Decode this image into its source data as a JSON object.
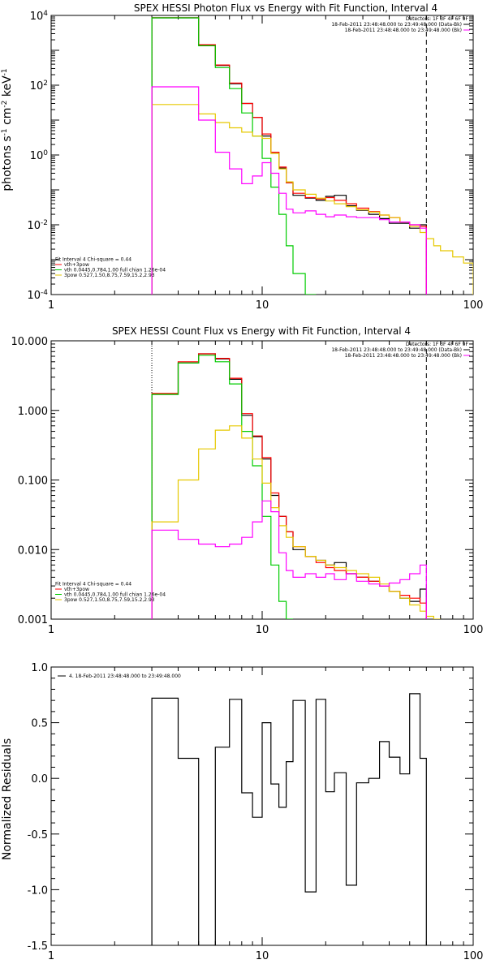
{
  "chart_data": [
    {
      "type": "line",
      "title": "SPEX HESSI Photon Flux vs Energy with Fit Function, Interval 4",
      "ylabel_main": "photons s",
      "ylabel_sup1": "-1",
      "ylabel_mid": " cm",
      "ylabel_sup2": "-2",
      "ylabel_end": " keV",
      "ylabel_sup3": "-1",
      "xlim": [
        1,
        100
      ],
      "ylim": [
        0.0001,
        10000
      ],
      "xscale": "log",
      "yscale": "log",
      "x_tick_labels": [
        {
          "v": 1,
          "t": "1"
        },
        {
          "v": 10,
          "t": "10"
        },
        {
          "v": 100,
          "t": "100"
        }
      ],
      "y_tick_labels": [
        {
          "v": 0.0001,
          "base": "10",
          "exp": "-4"
        },
        {
          "v": 0.01,
          "base": "10",
          "exp": "-2"
        },
        {
          "v": 1,
          "base": "10",
          "exp": "0"
        },
        {
          "v": 100,
          "base": "10",
          "exp": "2"
        },
        {
          "v": 10000,
          "base": "10",
          "exp": "4"
        }
      ],
      "legend_topright": [
        {
          "text": "Detectors: 1F 3F 4F 6F 9F",
          "color": ""
        },
        {
          "text": "18-Feb-2011 23:48:48.000 to 23:49:48.000 (Data-Bk)",
          "color": "#000000"
        },
        {
          "text": "18-Feb-2011 23:48:48.000 to 23:49:48.000 (Bk)",
          "color": "#ff00ff"
        }
      ],
      "legend_bottomleft": [
        {
          "text": "Fit Interval 4   Chi-square = 0.44",
          "color": ""
        },
        {
          "text": "vth+3pow",
          "color": "#ff0000"
        },
        {
          "text": "vth 0.0445,0.784,1.00  full chian 1.26e-04",
          "color": "#00cc00"
        },
        {
          "text": "3pow 0.527,1.50,8.75,7.59,15.2,2.93",
          "color": "#e6c800"
        }
      ],
      "vlines": [
        {
          "x": 3,
          "style": "dotted"
        },
        {
          "x": 60,
          "style": "dashed"
        }
      ],
      "series": [
        {
          "name": "Data-Bk",
          "color": "#000000",
          "edges": [
            3,
            4,
            5,
            6,
            7,
            8,
            9,
            10,
            11,
            12,
            13,
            14,
            16,
            18,
            20,
            22,
            25,
            28,
            32,
            36,
            40,
            45,
            50,
            56,
            60
          ],
          "values": [
            8500,
            8500,
            1400,
            370,
            110,
            30,
            12,
            3.5,
            1.2,
            0.42,
            0.16,
            0.07,
            0.058,
            0.05,
            0.065,
            0.07,
            0.035,
            0.026,
            0.02,
            0.015,
            0.011,
            0.011,
            0.008,
            0.01
          ]
        },
        {
          "name": "vth+3pow",
          "color": "#ff0000",
          "edges": [
            3,
            4,
            5,
            6,
            7,
            8,
            9,
            10,
            11,
            12,
            13,
            14,
            16,
            18,
            20,
            22,
            25,
            28,
            32,
            36,
            40,
            45,
            50,
            56,
            60
          ],
          "values": [
            8600,
            8600,
            1450,
            380,
            115,
            30,
            12,
            4,
            1.2,
            0.45,
            0.16,
            0.08,
            0.06,
            0.055,
            0.06,
            0.05,
            0.04,
            0.03,
            0.024,
            0.019,
            0.016,
            0.012,
            0.01,
            0.009
          ]
        },
        {
          "name": "vth",
          "color": "#00cc00",
          "edges": [
            3,
            4,
            5,
            6,
            7,
            8,
            9,
            10,
            11,
            12,
            13,
            14,
            16,
            18
          ],
          "values": [
            8500,
            8500,
            1350,
            320,
            80,
            16,
            3.5,
            0.8,
            0.12,
            0.02,
            0.0025,
            0.0004,
            0.0001
          ]
        },
        {
          "name": "3pow",
          "color": "#e6c800",
          "edges": [
            3,
            4,
            5,
            6,
            7,
            8,
            9,
            10,
            11,
            12,
            13,
            14,
            16,
            18,
            20,
            22,
            25,
            28,
            32,
            36,
            40,
            45,
            50,
            56,
            60,
            65,
            70,
            80,
            90,
            100
          ],
          "values": [
            28,
            28,
            15,
            8.5,
            6,
            4.5,
            3.5,
            3,
            1.1,
            0.4,
            0.17,
            0.1,
            0.075,
            0.058,
            0.048,
            0.04,
            0.033,
            0.027,
            0.023,
            0.019,
            0.016,
            0.012,
            0.009,
            0.006,
            0.004,
            0.0025,
            0.0018,
            0.0012,
            0.0008
          ]
        },
        {
          "name": "Bk",
          "color": "#ff00ff",
          "edges": [
            3,
            4,
            5,
            6,
            7,
            8,
            9,
            10,
            11,
            12,
            13,
            14,
            16,
            18,
            20,
            22,
            25,
            28,
            32,
            36,
            40,
            45,
            50,
            56,
            60
          ],
          "values": [
            90,
            90,
            10,
            1.2,
            0.4,
            0.15,
            0.25,
            0.6,
            0.3,
            0.08,
            0.028,
            0.022,
            0.025,
            0.02,
            0.017,
            0.019,
            0.017,
            0.016,
            0.016,
            0.014,
            0.012,
            0.012,
            0.01,
            0.008
          ]
        }
      ]
    },
    {
      "type": "line",
      "title": "SPEX HESSI Count Flux vs Energy with Fit Function, Interval 4",
      "xlim": [
        1,
        100
      ],
      "ylim": [
        0.001,
        10
      ],
      "xscale": "log",
      "yscale": "log",
      "x_tick_labels": [
        {
          "v": 1,
          "t": "1"
        },
        {
          "v": 10,
          "t": "10"
        },
        {
          "v": 100,
          "t": "100"
        }
      ],
      "y_tick_labels": [
        {
          "v": 0.001,
          "t": "0.001"
        },
        {
          "v": 0.01,
          "t": "0.010"
        },
        {
          "v": 0.1,
          "t": "0.100"
        },
        {
          "v": 1,
          "t": "1.000"
        },
        {
          "v": 10,
          "t": "10.000"
        }
      ],
      "legend_topright": [
        {
          "text": "Detectors: 1F 3F 4F 6F 9F",
          "color": ""
        },
        {
          "text": "18-Feb-2011 23:48:48.000 to 23:49:48.000 (Data-Bk)",
          "color": "#000000"
        },
        {
          "text": "18-Feb-2011 23:48:48.000 to 23:49:48.000 (Bk)",
          "color": "#ff00ff"
        }
      ],
      "legend_bottomleft": [
        {
          "text": "Fit Interval 4   Chi-square = 0.44",
          "color": ""
        },
        {
          "text": "vth+3pow",
          "color": "#ff0000"
        },
        {
          "text": "vth 0.0445,0.784,1.00  full chian 1.26e-04",
          "color": "#00cc00"
        },
        {
          "text": "3pow 0.527,1.50,8.75,7.59,15.2,2.93",
          "color": "#e6c800"
        }
      ],
      "vlines": [
        {
          "x": 3,
          "style": "dotted"
        },
        {
          "x": 60,
          "style": "dashed"
        }
      ],
      "series": [
        {
          "name": "Data-Bk",
          "color": "#000000",
          "edges": [
            3,
            4,
            5,
            6,
            7,
            8,
            9,
            10,
            11,
            12,
            13,
            14,
            16,
            18,
            20,
            22,
            25,
            28,
            32,
            36,
            40,
            45,
            50,
            56,
            60
          ],
          "values": [
            1.7,
            4.8,
            6.5,
            5.5,
            2.8,
            0.85,
            0.42,
            0.2,
            0.06,
            0.03,
            0.018,
            0.01,
            0.008,
            0.007,
            0.006,
            0.0065,
            0.0045,
            0.004,
            0.0035,
            0.003,
            0.0025,
            0.002,
            0.0018,
            0.0027
          ]
        },
        {
          "name": "vth+3pow",
          "color": "#ff0000",
          "edges": [
            3,
            4,
            5,
            6,
            7,
            8,
            9,
            10,
            11,
            12,
            13,
            14,
            16,
            18,
            20,
            22,
            25,
            28,
            32,
            36,
            40,
            45,
            50,
            56,
            60
          ],
          "values": [
            1.75,
            5,
            6.5,
            5.6,
            2.9,
            0.9,
            0.43,
            0.21,
            0.065,
            0.03,
            0.018,
            0.011,
            0.008,
            0.0065,
            0.0055,
            0.005,
            0.0045,
            0.004,
            0.0035,
            0.003,
            0.0025,
            0.0022,
            0.002,
            0.0017
          ]
        },
        {
          "name": "vth",
          "color": "#00cc00",
          "edges": [
            3,
            4,
            5,
            6,
            7,
            8,
            9,
            10,
            11,
            12,
            13,
            14
          ],
          "values": [
            1.7,
            4.8,
            6.2,
            5.0,
            2.4,
            0.5,
            0.16,
            0.03,
            0.006,
            0.0018,
            0.0009
          ]
        },
        {
          "name": "3pow",
          "color": "#e6c800",
          "edges": [
            3,
            4,
            5,
            6,
            7,
            8,
            9,
            10,
            11,
            12,
            13,
            14,
            16,
            18,
            20,
            22,
            25,
            28,
            32,
            36,
            40,
            45,
            50,
            56,
            60,
            65,
            70
          ],
          "values": [
            0.025,
            0.1,
            0.28,
            0.52,
            0.6,
            0.4,
            0.2,
            0.09,
            0.04,
            0.022,
            0.015,
            0.011,
            0.008,
            0.007,
            0.006,
            0.0055,
            0.005,
            0.0045,
            0.004,
            0.0032,
            0.0025,
            0.002,
            0.0016,
            0.0013,
            0.0011,
            0.0009
          ]
        },
        {
          "name": "Bk",
          "color": "#ff00ff",
          "edges": [
            3,
            4,
            5,
            6,
            7,
            8,
            9,
            10,
            11,
            12,
            13,
            14,
            16,
            18,
            20,
            22,
            25,
            28,
            32,
            36,
            40,
            45,
            50,
            56,
            60
          ],
          "values": [
            0.019,
            0.014,
            0.012,
            0.011,
            0.012,
            0.015,
            0.025,
            0.05,
            0.035,
            0.009,
            0.005,
            0.004,
            0.0045,
            0.004,
            0.0045,
            0.0037,
            0.0045,
            0.0035,
            0.0032,
            0.003,
            0.0033,
            0.0037,
            0.0045,
            0.006
          ]
        }
      ]
    },
    {
      "type": "line",
      "ylabel": "Normalized Residuals",
      "xlim": [
        1,
        100
      ],
      "ylim": [
        -1.5,
        1.0
      ],
      "xscale": "log",
      "yscale": "linear",
      "x_tick_labels": [
        {
          "v": 1,
          "t": "1"
        },
        {
          "v": 10,
          "t": "10"
        },
        {
          "v": 100,
          "t": "100"
        }
      ],
      "y_tick_labels": [
        {
          "v": 1.0,
          "t": "1.0"
        },
        {
          "v": 0.5,
          "t": "0.5"
        },
        {
          "v": 0.0,
          "t": "0.0"
        },
        {
          "v": -0.5,
          "t": "-0.5"
        },
        {
          "v": -1.0,
          "t": "-1.0"
        },
        {
          "v": -1.5,
          "t": "-1.5"
        }
      ],
      "legend_topleft": [
        {
          "text": "4. 18-Feb-2011 23:48:48.000 to 23:49:48.000",
          "color": "#000000"
        }
      ],
      "series": [
        {
          "name": "4. 18-Feb-2011 23:48:48.000 to 23:49:48.000",
          "color": "#000000",
          "edges": [
            3,
            4,
            5,
            6,
            7,
            8,
            9,
            10,
            11,
            12,
            13,
            14,
            16,
            18,
            20,
            22,
            25,
            28,
            32,
            36,
            40,
            45,
            50,
            56,
            60
          ],
          "values": [
            0.72,
            0.18,
            -1.5,
            0.28,
            0.71,
            -0.13,
            -0.35,
            0.5,
            -0.05,
            -0.26,
            0.15,
            0.7,
            -1.02,
            0.71,
            -0.12,
            0.05,
            -0.96,
            -0.04,
            0.0,
            0.33,
            0.19,
            0.04,
            0.76,
            0.18
          ]
        }
      ]
    }
  ]
}
